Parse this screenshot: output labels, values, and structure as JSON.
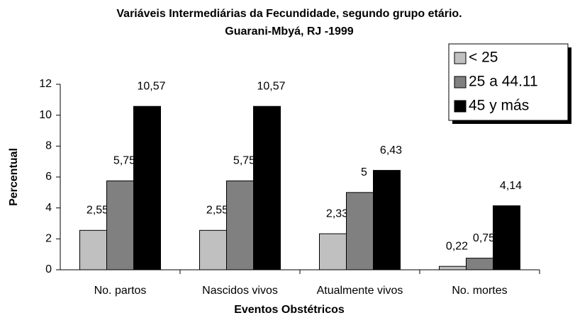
{
  "chart_data": {
    "type": "bar",
    "title": "Variáveis Intermediárias da Fecundidade, segundo grupo etário.",
    "subtitle": "Guarani-Mbyá, RJ -1999",
    "x_label": "Eventos Obstétricos",
    "y_label": "Percentual",
    "categories": [
      "No. partos",
      "Nascidos vivos",
      "Atualmente vivos",
      "No. mortes"
    ],
    "series": [
      {
        "name": "< 25",
        "color": "#c0c0c0",
        "values": [
          2.55,
          2.55,
          2.33,
          0.22
        ],
        "value_labels": [
          "2,55",
          "2,55",
          "2,33",
          "0,22"
        ]
      },
      {
        "name": "25 a 44.11",
        "color": "#808080",
        "values": [
          5.75,
          5.75,
          5,
          0.75
        ],
        "value_labels": [
          "5,75",
          "5,75",
          "5",
          "0,75"
        ]
      },
      {
        "name": "45 y más",
        "color": "#000000",
        "values": [
          10.57,
          10.57,
          6.43,
          4.14
        ],
        "value_labels": [
          "10,57",
          "10,57",
          "6,43",
          "4,14"
        ]
      }
    ],
    "ylim": [
      0,
      12
    ],
    "yticks": [
      0,
      2,
      4,
      6,
      8,
      10,
      12
    ],
    "grid": false,
    "legend": "top-right"
  }
}
